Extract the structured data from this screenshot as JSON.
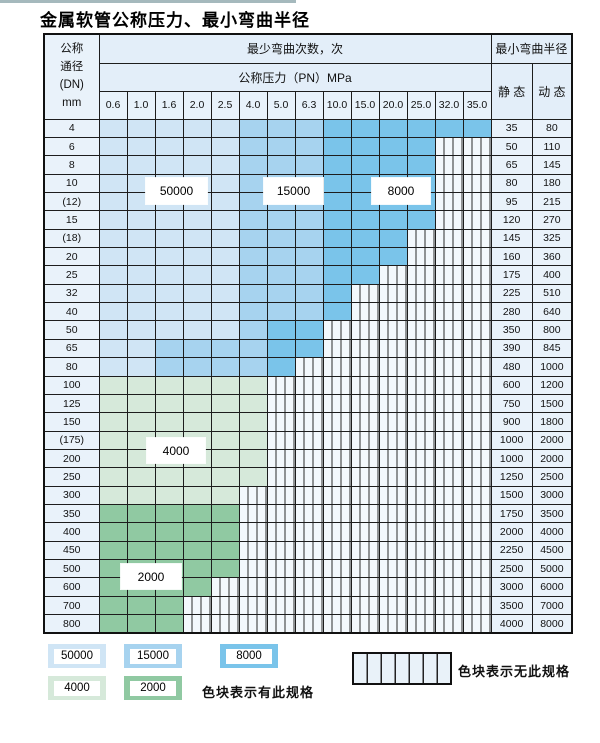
{
  "title": "金属软管公称压力、最小弯曲半径",
  "table": {
    "corner_header": {
      "line1": "公称",
      "line2": "通径",
      "line3": "(DN)",
      "line4": "mm"
    },
    "cycles_header": "最少弯曲次数，次",
    "pressure_header": "公称压力（PN）MPa",
    "radius_header": "最小弯曲半径",
    "static_header": "静 态",
    "dynamic_header": "动 态",
    "pressure_columns": [
      "0.6",
      "1.0",
      "1.6",
      "2.0",
      "2.5",
      "4.0",
      "5.0",
      "6.3",
      "10.0",
      "15.0",
      "20.0",
      "25.0",
      "32.0",
      "35.0"
    ],
    "cell_key": {
      "L": 50000,
      "M": 15000,
      "D": 8000,
      "g": 4000,
      "G": 2000,
      "x": null
    },
    "rows": [
      {
        "dn": "4",
        "cells": "LLLLLMMMDDDDDD",
        "static": "35",
        "dynamic": "80"
      },
      {
        "dn": "6",
        "cells": "LLLLLMMMDDDDxx",
        "static": "50",
        "dynamic": "110"
      },
      {
        "dn": "8",
        "cells": "LLLLLMMMDDDDxx",
        "static": "65",
        "dynamic": "145"
      },
      {
        "dn": "10",
        "cells": "LLLLLMMMDDDDxx",
        "static": "80",
        "dynamic": "180"
      },
      {
        "dn": "(12)",
        "cells": "LLLLLMMMDDDDxx",
        "static": "95",
        "dynamic": "215"
      },
      {
        "dn": "15",
        "cells": "LLLLLMMMDDDDxx",
        "static": "120",
        "dynamic": "270"
      },
      {
        "dn": "(18)",
        "cells": "LLLLLMMMDDDxxx",
        "static": "145",
        "dynamic": "325"
      },
      {
        "dn": "20",
        "cells": "LLLLLMMMDDDxxx",
        "static": "160",
        "dynamic": "360"
      },
      {
        "dn": "25",
        "cells": "LLLLLMMMDDxxxx",
        "static": "175",
        "dynamic": "400"
      },
      {
        "dn": "32",
        "cells": "LLLLLMMMDxxxxx",
        "static": "225",
        "dynamic": "510"
      },
      {
        "dn": "40",
        "cells": "LLLLLMMMDxxxxx",
        "static": "280",
        "dynamic": "640"
      },
      {
        "dn": "50",
        "cells": "LLLLLMDDxxxxxx",
        "static": "350",
        "dynamic": "800"
      },
      {
        "dn": "65",
        "cells": "LLMMMMDDxxxxxx",
        "static": "390",
        "dynamic": "845"
      },
      {
        "dn": "80",
        "cells": "LLMMMMDxxxxxxx",
        "static": "480",
        "dynamic": "1000"
      },
      {
        "dn": "100",
        "cells": "ggggggxxxxxxxx",
        "static": "600",
        "dynamic": "1200"
      },
      {
        "dn": "125",
        "cells": "ggggggxxxxxxxx",
        "static": "750",
        "dynamic": "1500"
      },
      {
        "dn": "150",
        "cells": "ggggggxxxxxxxx",
        "static": "900",
        "dynamic": "1800"
      },
      {
        "dn": "(175)",
        "cells": "ggggggxxxxxxxx",
        "static": "1000",
        "dynamic": "2000"
      },
      {
        "dn": "200",
        "cells": "ggggggxxxxxxxx",
        "static": "1000",
        "dynamic": "2000"
      },
      {
        "dn": "250",
        "cells": "ggggggxxxxxxxx",
        "static": "1250",
        "dynamic": "2500"
      },
      {
        "dn": "300",
        "cells": "gggggxxxxxxxxx",
        "static": "1500",
        "dynamic": "3000"
      },
      {
        "dn": "350",
        "cells": "GGGGGxxxxxxxxx",
        "static": "1750",
        "dynamic": "3500"
      },
      {
        "dn": "400",
        "cells": "GGGGGxxxxxxxxx",
        "static": "2000",
        "dynamic": "4000"
      },
      {
        "dn": "450",
        "cells": "GGGGGxxxxxxxxx",
        "static": "2250",
        "dynamic": "4500"
      },
      {
        "dn": "500",
        "cells": "GGGGGxxxxxxxxx",
        "static": "2500",
        "dynamic": "5000"
      },
      {
        "dn": "600",
        "cells": "GGGGxxxxxxxxxx",
        "static": "3000",
        "dynamic": "6000"
      },
      {
        "dn": "700",
        "cells": "GGGxxxxxxxxxxx",
        "static": "3500",
        "dynamic": "7000"
      },
      {
        "dn": "800",
        "cells": "GGGxxxxxxxxxxx",
        "static": "4000",
        "dynamic": "8000"
      }
    ]
  },
  "region_labels": {
    "r50000": "50000",
    "r15000": "15000",
    "r8000": "8000",
    "r4000": "4000",
    "r2000": "2000"
  },
  "legend": {
    "swatches": [
      {
        "value": "50000",
        "color": "#d0e5f5"
      },
      {
        "value": "15000",
        "color": "#a7d3ef"
      },
      {
        "value": "8000",
        "color": "#7ac4ea"
      },
      {
        "value": "4000",
        "color": "#d6e9da"
      },
      {
        "value": "2000",
        "color": "#90c9a2"
      }
    ],
    "has_spec_note": "色块表示有此规格",
    "no_spec_note": "色块表示无此规格"
  },
  "colors": {
    "cycles_50000": "#d0e5f5",
    "cycles_15000": "#a7d3ef",
    "cycles_8000": "#7ac4ea",
    "cycles_4000": "#d6e9da",
    "cycles_2000": "#90c9a2",
    "plain_cell": "#e9f2fa",
    "header_cell": "#e3eef9",
    "hatch_background": "#f3f8fc",
    "grid_line": "#1d1d1d"
  }
}
